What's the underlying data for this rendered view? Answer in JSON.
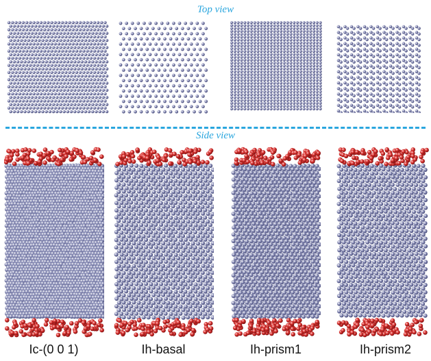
{
  "titles": {
    "top_view": "Top view",
    "side_view": "Side view"
  },
  "structures": [
    {
      "label": "Ic-(0 0 1)"
    },
    {
      "label": "Ih-basal"
    },
    {
      "label": "Ih-prism1"
    },
    {
      "label": "Ih-prism2"
    }
  ],
  "colors": {
    "accent": "#2aa6de",
    "ice_atom": "#8b8fb8",
    "water_atom": "#d8322f"
  }
}
